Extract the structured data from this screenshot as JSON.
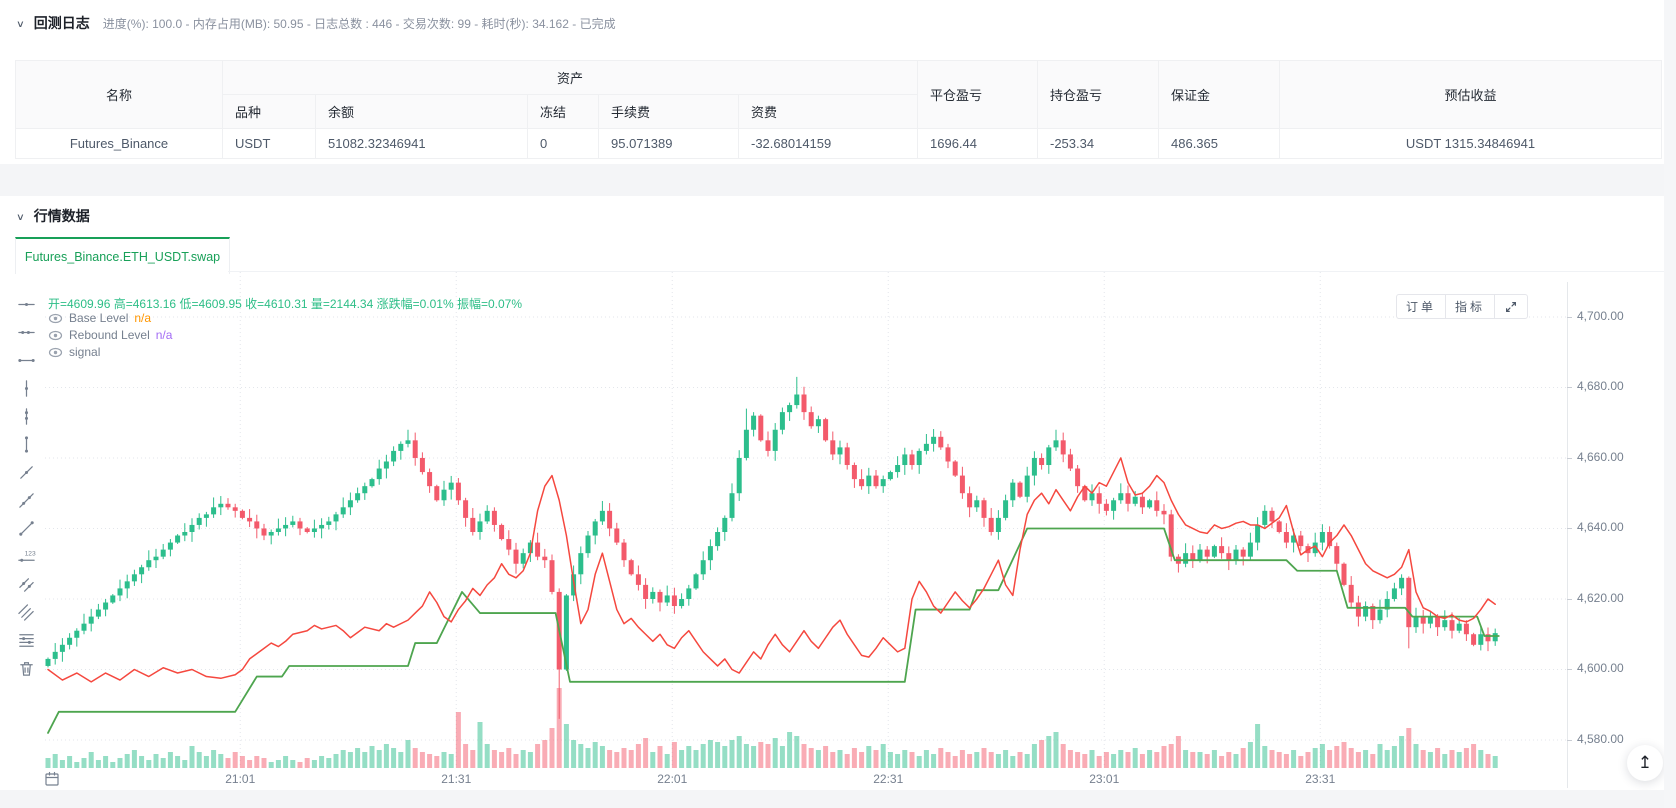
{
  "icons": {
    "collapse": "∨",
    "back_to_top": "↥"
  },
  "backtest_log": {
    "title": "回测日志",
    "status_text": "进度(%): 100.0  - 内存占用(MB): 50.95 - 日志总数 : 446 - 交易次数:  99 - 耗时(秒): 34.162 - 已完成"
  },
  "table": {
    "col_name": "名称",
    "group_assets": "资产",
    "sub_cols": {
      "variety": "品种",
      "balance": "余额",
      "frozen": "冻结",
      "fee": "手续费",
      "funding": "资费"
    },
    "col_closed_pnl": "平仓盈亏",
    "col_position_pnl": "持仓盈亏",
    "col_margin": "保证金",
    "col_est_profit": "预估收益",
    "row": {
      "name": "Futures_Binance",
      "variety": "USDT",
      "balance": "51082.32346941",
      "frozen": "0",
      "fee": "95.071389",
      "funding": "-32.68014159",
      "closed_pnl": "1696.44",
      "position_pnl": "-253.34",
      "margin": "486.365",
      "est_profit": "USDT 1315.34846941"
    }
  },
  "market": {
    "title": "行情数据",
    "tab": "Futures_Binance.ETH_USDT.swap"
  },
  "chart": {
    "ohlc_legend": "开=4609.96 高=4613.16 低=4609.95 收=4610.31 量=2144.34 涨跌幅=0.01% 振幅=0.07%",
    "indicators": [
      {
        "name": "Base Level",
        "value": "n/a",
        "value_color": "#FF9600"
      },
      {
        "name": "Rebound Level",
        "value": "n/a",
        "value_color": "#A36CF5"
      },
      {
        "name": "signal",
        "value": ""
      }
    ],
    "buttons": {
      "orders": "订单",
      "indicators": "指标"
    },
    "toolbar": [
      "horizontal-line",
      "horizontal-ray",
      "horizontal-segment",
      "vertical-line",
      "vertical-ray",
      "vertical-segment",
      "trend-line",
      "ray-line",
      "segment-line",
      "price-line",
      "parallel-line",
      "price-channel-line",
      "fibonacci-line",
      "delete"
    ]
  },
  "chart_data": {
    "type": "candlestick",
    "symbol": "Futures_Binance.ETH_USDT.swap",
    "colors": {
      "up": "#2CBE8C",
      "down": "#F35A6B",
      "signal_line": "#F5483F",
      "base_line": "#4EA54F",
      "grid": "#E3E6EB",
      "axis_text": "#76808F"
    },
    "y_axis": {
      "ticks": [
        4700,
        4680,
        4660,
        4640,
        4620,
        4600,
        4580
      ],
      "labels": [
        "4,700.00",
        "4,680.00",
        "4,660.00",
        "4,640.00",
        "4,620.00",
        "4,600.00",
        "4,580.00"
      ]
    },
    "x_axis": {
      "tick_pos": [
        26.7,
        56.7,
        86.7,
        116.7,
        146.7,
        176.7
      ],
      "labels": [
        "21:01",
        "21:31",
        "22:01",
        "22:31",
        "23:01",
        "23:31"
      ]
    },
    "open_first": 4601,
    "closes": [
      4603,
      4605,
      4607,
      4609,
      4611,
      4613,
      4615,
      4617,
      4619,
      4621,
      4623,
      4625,
      4627,
      4629,
      4631,
      4632,
      4634,
      4636,
      4638,
      4639,
      4641,
      4643,
      4644,
      4646,
      4647,
      4646,
      4645,
      4643,
      4642,
      4640,
      4638,
      4639,
      4640,
      4641,
      4642,
      4640,
      4639,
      4640,
      4641,
      4642,
      4644,
      4646,
      4648,
      4650,
      4652,
      4654,
      4657,
      4659,
      4662,
      4664,
      4665,
      4660,
      4656,
      4652,
      4648,
      4651,
      4653,
      4648,
      4643,
      4639,
      4642,
      4645,
      4641,
      4637,
      4634,
      4630,
      4633,
      4636,
      4632,
      4631,
      4622,
      4600,
      4621,
      4627,
      4633,
      4638,
      4642,
      4645,
      4640,
      4636,
      4631,
      4627,
      4624,
      4620,
      4622,
      4619,
      4621,
      4618,
      4620,
      4623,
      4627,
      4631,
      4635,
      4639,
      4643,
      4650,
      4660,
      4668,
      4672,
      4665,
      4662,
      4668,
      4673,
      4675,
      4678,
      4673,
      4669,
      4671,
      4665,
      4661,
      4663,
      4658,
      4654,
      4652,
      4655,
      4652,
      4654,
      4656,
      4658,
      4661,
      4658,
      4662,
      4664,
      4666,
      4663,
      4659,
      4655,
      4650,
      4646,
      4648,
      4643,
      4639,
      4643,
      4648,
      4653,
      4649,
      4655,
      4660,
      4658,
      4663,
      4665,
      4661,
      4657,
      4652,
      4648,
      4650,
      4647,
      4645,
      4648,
      4650,
      4647,
      4649,
      4646,
      4648,
      4645,
      4644,
      4632,
      4630,
      4633,
      4631,
      4634,
      4632,
      4635,
      4633,
      4631,
      4634,
      4632,
      4636,
      4641,
      4645,
      4642,
      4639,
      4636,
      4638,
      4635,
      4633,
      4636,
      4639,
      4635,
      4630,
      4624,
      4619,
      4615,
      4618,
      4614,
      4617,
      4620,
      4623,
      4626,
      4612,
      4615,
      4613,
      4615,
      4612,
      4614,
      4611,
      4613,
      4610,
      4607,
      4610,
      4608,
      4610.31
    ],
    "volumes": [
      5,
      7,
      4,
      6,
      3,
      5,
      8,
      4,
      6,
      3,
      5,
      7,
      9,
      6,
      4,
      7,
      5,
      8,
      6,
      4,
      11,
      8,
      6,
      9,
      7,
      5,
      8,
      6,
      4,
      6,
      5,
      3,
      4,
      6,
      4,
      3,
      5,
      4,
      6,
      5,
      7,
      9,
      8,
      10,
      8,
      11,
      9,
      12,
      10,
      8,
      14,
      10,
      8,
      7,
      6,
      8,
      7,
      28,
      12,
      9,
      23,
      12,
      9,
      8,
      10,
      7,
      9,
      8,
      12,
      14,
      20,
      40,
      22,
      14,
      12,
      10,
      13,
      11,
      9,
      8,
      10,
      9,
      12,
      15,
      8,
      11,
      7,
      13,
      9,
      11,
      9,
      12,
      14,
      13,
      11,
      14,
      16,
      12,
      11,
      13,
      12,
      15,
      11,
      18,
      16,
      12,
      10,
      9,
      11,
      8,
      9,
      7,
      10,
      8,
      11,
      9,
      12,
      8,
      7,
      9,
      8,
      6,
      9,
      7,
      10,
      8,
      6,
      9,
      7,
      8,
      10,
      8,
      7,
      9,
      6,
      8,
      7,
      12,
      14,
      16,
      18,
      12,
      9,
      8,
      7,
      9,
      6,
      8,
      7,
      9,
      8,
      10,
      7,
      9,
      8,
      11,
      12,
      16,
      9,
      8,
      8,
      7,
      9,
      6,
      8,
      7,
      10,
      13,
      22,
      11,
      9,
      8,
      7,
      9,
      6,
      8,
      10,
      12,
      9,
      11,
      13,
      10,
      8,
      9,
      7,
      12,
      9,
      11,
      16,
      20,
      12,
      9,
      8,
      10,
      7,
      9,
      8,
      10,
      12,
      9,
      7,
      6
    ],
    "wick_high_overrides": {
      "50": 4668,
      "97": 4674,
      "104": 4683,
      "140": 4668
    },
    "wick_low_overrides": {
      "71": 4586,
      "189": 4606
    },
    "series": [
      {
        "name": "signal_red",
        "points": [
          [
            0,
            4600
          ],
          [
            2,
            4597
          ],
          [
            4,
            4599
          ],
          [
            6,
            4596.5
          ],
          [
            8,
            4599
          ],
          [
            10,
            4597
          ],
          [
            12,
            4600
          ],
          [
            14,
            4598
          ],
          [
            16,
            4600.5
          ],
          [
            18,
            4599
          ],
          [
            20,
            4600
          ],
          [
            22,
            4598
          ],
          [
            24,
            4597.5
          ],
          [
            26,
            4598.5
          ],
          [
            27,
            4600
          ],
          [
            28,
            4603
          ],
          [
            30,
            4606
          ],
          [
            31,
            4607.5
          ],
          [
            32,
            4606.5
          ],
          [
            33,
            4608
          ],
          [
            34,
            4610
          ],
          [
            36,
            4611
          ],
          [
            37,
            4612.5
          ],
          [
            38,
            4611.5
          ],
          [
            40,
            4612.5
          ],
          [
            41,
            4611
          ],
          [
            42,
            4609
          ],
          [
            43,
            4610.5
          ],
          [
            44,
            4612
          ],
          [
            46,
            4611
          ],
          [
            47,
            4613
          ],
          [
            48,
            4612
          ],
          [
            50,
            4614
          ],
          [
            51,
            4616
          ],
          [
            52,
            4618
          ],
          [
            53,
            4622
          ],
          [
            54,
            4619
          ],
          [
            55,
            4615
          ],
          [
            56,
            4613.5
          ],
          [
            57,
            4617
          ],
          [
            58,
            4619.5
          ],
          [
            59,
            4623
          ],
          [
            60,
            4621
          ],
          [
            61,
            4624
          ],
          [
            62,
            4626
          ],
          [
            63,
            4630
          ],
          [
            64,
            4627
          ],
          [
            65,
            4626
          ],
          [
            66,
            4628
          ],
          [
            67,
            4633
          ],
          [
            68,
            4645
          ],
          [
            69,
            4652
          ],
          [
            70,
            4655
          ],
          [
            71,
            4648
          ],
          [
            72,
            4638
          ],
          [
            73,
            4625
          ],
          [
            74,
            4613
          ],
          [
            75,
            4617
          ],
          [
            76,
            4627
          ],
          [
            77,
            4633
          ],
          [
            78,
            4625
          ],
          [
            79,
            4617
          ],
          [
            80,
            4613
          ],
          [
            81,
            4614.5
          ],
          [
            82,
            4612
          ],
          [
            83,
            4610
          ],
          [
            84,
            4608
          ],
          [
            85,
            4610
          ],
          [
            86,
            4607
          ],
          [
            87,
            4606
          ],
          [
            88,
            4609
          ],
          [
            89,
            4611
          ],
          [
            90,
            4608
          ],
          [
            91,
            4605
          ],
          [
            92,
            4603
          ],
          [
            93,
            4601
          ],
          [
            94,
            4603
          ],
          [
            95,
            4600
          ],
          [
            96,
            4599
          ],
          [
            97,
            4602
          ],
          [
            98,
            4605
          ],
          [
            99,
            4603
          ],
          [
            100,
            4607
          ],
          [
            101,
            4610
          ],
          [
            102,
            4607
          ],
          [
            103,
            4605
          ],
          [
            104,
            4608
          ],
          [
            105,
            4611
          ],
          [
            106,
            4608
          ],
          [
            107,
            4606
          ],
          [
            108,
            4609
          ],
          [
            109,
            4612
          ],
          [
            110,
            4614
          ],
          [
            111,
            4610
          ],
          [
            112,
            4607
          ],
          [
            113,
            4604
          ],
          [
            114,
            4603.5
          ],
          [
            115,
            4606
          ],
          [
            116,
            4609
          ],
          [
            117,
            4607
          ],
          [
            118,
            4605
          ],
          [
            119,
            4606
          ],
          [
            120,
            4620
          ],
          [
            121,
            4625
          ],
          [
            122,
            4622
          ],
          [
            123,
            4618
          ],
          [
            124,
            4616
          ],
          [
            125,
            4619
          ],
          [
            126,
            4622
          ],
          [
            127,
            4619.5
          ],
          [
            128,
            4617.5
          ],
          [
            129,
            4620
          ],
          [
            130,
            4623
          ],
          [
            131,
            4627
          ],
          [
            132,
            4631
          ],
          [
            133,
            4624
          ],
          [
            134,
            4621
          ],
          [
            135,
            4634
          ],
          [
            136,
            4644
          ],
          [
            137,
            4648
          ],
          [
            138,
            4650
          ],
          [
            139,
            4647
          ],
          [
            140,
            4651
          ],
          [
            141,
            4648
          ],
          [
            142,
            4645
          ],
          [
            143,
            4649
          ],
          [
            144,
            4652
          ],
          [
            145,
            4650
          ],
          [
            146,
            4653
          ],
          [
            147,
            4652
          ],
          [
            148,
            4656
          ],
          [
            149,
            4660
          ],
          [
            150,
            4653
          ],
          [
            151,
            4649.5
          ],
          [
            152,
            4650
          ],
          [
            153,
            4652
          ],
          [
            154,
            4655
          ],
          [
            155,
            4653
          ],
          [
            156,
            4648
          ],
          [
            157,
            4644
          ],
          [
            158,
            4641
          ],
          [
            159,
            4640
          ],
          [
            160,
            4639
          ],
          [
            161,
            4638.6
          ],
          [
            162,
            4641
          ],
          [
            163,
            4640
          ],
          [
            164,
            4640.5
          ],
          [
            165,
            4641.5
          ],
          [
            166,
            4642
          ],
          [
            167,
            4641
          ],
          [
            168,
            4641
          ],
          [
            169,
            4640
          ],
          [
            170,
            4641.5
          ],
          [
            171,
            4643
          ],
          [
            172,
            4646.5
          ],
          [
            173,
            4639
          ],
          [
            174,
            4632.5
          ],
          [
            175,
            4634
          ],
          [
            176,
            4635
          ],
          [
            177,
            4632
          ],
          [
            178,
            4636
          ],
          [
            179,
            4638
          ],
          [
            180,
            4641
          ],
          [
            181,
            4638
          ],
          [
            182,
            4634
          ],
          [
            183,
            4630
          ],
          [
            184,
            4628
          ],
          [
            185,
            4627
          ],
          [
            186,
            4626
          ],
          [
            187,
            4627
          ],
          [
            188,
            4629
          ],
          [
            189,
            4634
          ],
          [
            190,
            4622
          ],
          [
            191,
            4617.5
          ],
          [
            192,
            4616.5
          ],
          [
            193,
            4615
          ],
          [
            194,
            4614.5
          ],
          [
            195,
            4615.5
          ],
          [
            196,
            4614
          ],
          [
            197,
            4613.5
          ],
          [
            198,
            4614.5
          ],
          [
            199,
            4617
          ],
          [
            200,
            4620
          ],
          [
            201,
            4618.5
          ]
        ]
      },
      {
        "name": "base_green_step",
        "points": [
          [
            0,
            4582
          ],
          [
            1.5,
            4588
          ],
          [
            26,
            4588
          ],
          [
            29,
            4598
          ],
          [
            32.5,
            4598
          ],
          [
            33.5,
            4601
          ],
          [
            50,
            4601
          ],
          [
            51,
            4607.5
          ],
          [
            54,
            4607.5
          ],
          [
            57.5,
            4622
          ],
          [
            60,
            4616
          ],
          [
            70.5,
            4616
          ],
          [
            72.5,
            4596.5
          ],
          [
            119,
            4596.5
          ],
          [
            120.5,
            4617
          ],
          [
            128,
            4617
          ],
          [
            129,
            4622.5
          ],
          [
            132,
            4622.5
          ],
          [
            136,
            4640
          ],
          [
            155,
            4640
          ],
          [
            156.5,
            4631
          ],
          [
            172,
            4631
          ],
          [
            173.5,
            4628
          ],
          [
            179,
            4628
          ],
          [
            180.5,
            4617.5
          ],
          [
            188.5,
            4617.5
          ],
          [
            189.5,
            4615
          ],
          [
            198.5,
            4615
          ],
          [
            199.5,
            4609.5
          ],
          [
            201.5,
            4609.5
          ]
        ]
      }
    ]
  }
}
